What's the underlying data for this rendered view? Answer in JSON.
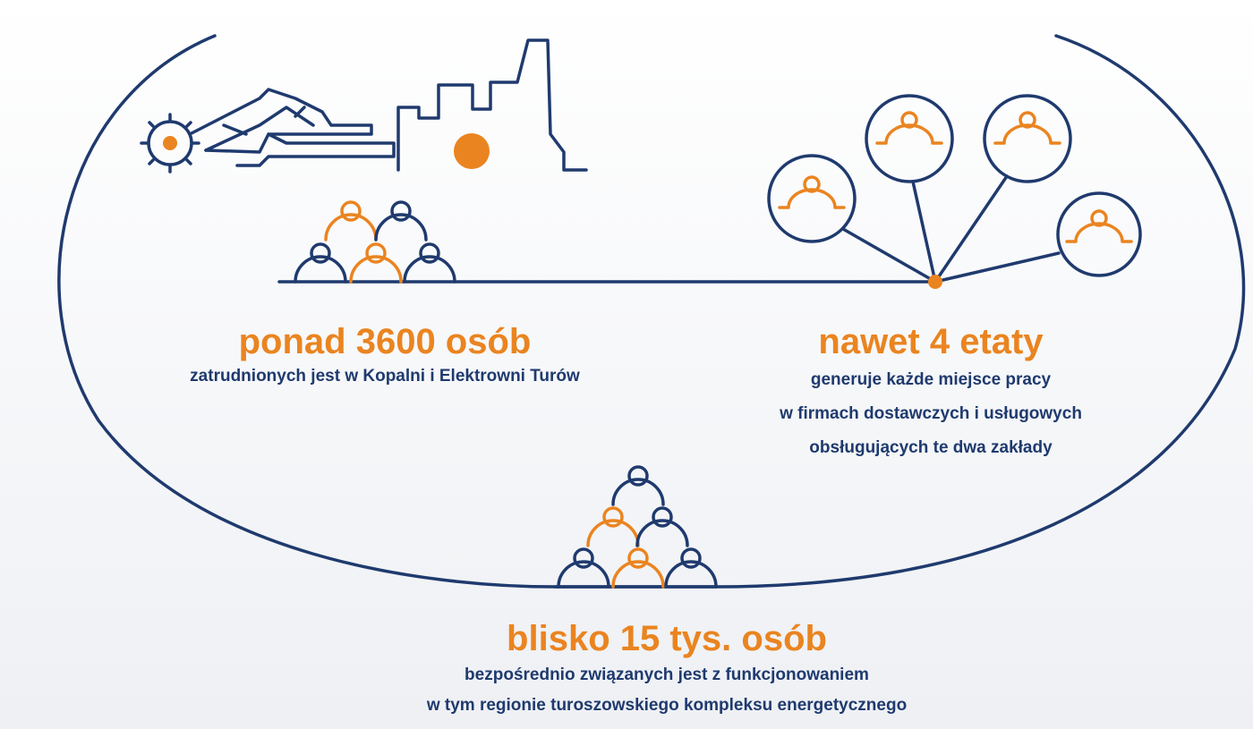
{
  "blocks": [
    {
      "headline": "ponad 3600 osób",
      "lines": [
        "zatrudnionych jest w Kopalni i Elektrowni Turów"
      ]
    },
    {
      "headline": "nawet 4 etaty",
      "lines": [
        "generuje każde miejsce pracy",
        "w firmach dostawczych i usługowych",
        "obsługujących te dwa zakłady"
      ]
    },
    {
      "headline": "blisko 15 tys. osób",
      "lines": [
        "bezpośrednio związanych jest z funkcjonowaniem",
        "w tym regionie turoszowskiego kompleksu energetycznego"
      ]
    }
  ]
}
